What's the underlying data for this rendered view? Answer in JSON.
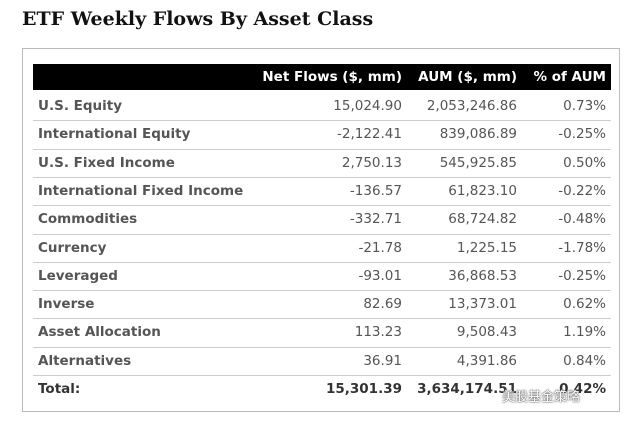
{
  "header": {
    "title": "ETF Weekly Flows By Asset Class"
  },
  "table": {
    "columns": [
      "",
      "Net Flows ($, mm)",
      "AUM ($, mm)",
      "% of AUM"
    ],
    "rows": [
      [
        "U.S. Equity",
        "15,024.90",
        "2,053,246.86",
        "0.73%"
      ],
      [
        "International Equity",
        "-2,122.41",
        "839,086.89",
        "-0.25%"
      ],
      [
        "U.S. Fixed Income",
        "2,750.13",
        "545,925.85",
        "0.50%"
      ],
      [
        "International Fixed Income",
        "-136.57",
        "61,823.10",
        "-0.22%"
      ],
      [
        "Commodities",
        "-332.71",
        "68,724.82",
        "-0.48%"
      ],
      [
        "Currency",
        "-21.78",
        "1,225.15",
        "-1.78%"
      ],
      [
        "Leveraged",
        "-93.01",
        "36,868.53",
        "-0.25%"
      ],
      [
        "Inverse",
        "82.69",
        "13,373.01",
        "0.62%"
      ],
      [
        "Asset Allocation",
        "113.23",
        "9,508.43",
        "1.19%"
      ],
      [
        "Alternatives",
        "36.91",
        "4,391.86",
        "0.84%"
      ]
    ],
    "total": [
      "Total:",
      "15,301.39",
      "3,634,174.51",
      "0.42%"
    ]
  },
  "watermark": "美股基金策略"
}
